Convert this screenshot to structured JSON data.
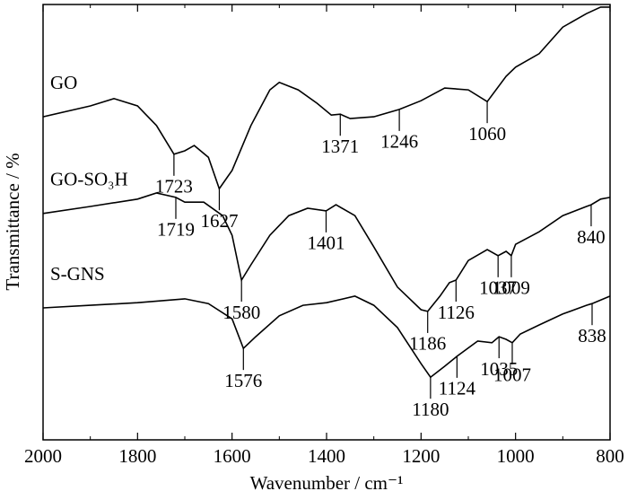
{
  "chart_data": {
    "type": "line",
    "xlabel": "Wavenumber / cm⁻¹",
    "ylabel": "Transmittance / %",
    "xlim": [
      2000,
      800
    ],
    "xticks": [
      2000,
      1800,
      1600,
      1400,
      1200,
      1000,
      800
    ],
    "ylim": [
      0,
      100
    ],
    "color": "#000000",
    "series": [
      {
        "name": "GO",
        "x": [
          2000,
          1900,
          1850,
          1800,
          1760,
          1723,
          1700,
          1680,
          1650,
          1627,
          1600,
          1560,
          1520,
          1500,
          1460,
          1420,
          1390,
          1371,
          1350,
          1300,
          1246,
          1200,
          1150,
          1100,
          1060,
          1020,
          1000,
          950,
          900,
          850,
          820,
          800
        ],
        "values": [
          74.2,
          76.7,
          78.4,
          76.7,
          72.2,
          65.6,
          66.4,
          67.6,
          64.9,
          57.7,
          61.9,
          72.2,
          80.4,
          82.1,
          80.4,
          77.3,
          74.6,
          74.8,
          73.8,
          74.2,
          75.9,
          77.9,
          80.8,
          80.4,
          77.7,
          83.5,
          85.6,
          88.7,
          94.8,
          97.9,
          99.4,
          99.4
        ],
        "peaks": [
          1723,
          1627,
          1371,
          1246,
          1060
        ]
      },
      {
        "name": "GO-SO₃H",
        "x": [
          2000,
          1900,
          1800,
          1760,
          1719,
          1700,
          1660,
          1620,
          1600,
          1580,
          1560,
          1520,
          1480,
          1440,
          1401,
          1380,
          1340,
          1300,
          1250,
          1200,
          1186,
          1160,
          1140,
          1126,
          1100,
          1060,
          1037,
          1020,
          1009,
          1000,
          950,
          900,
          850,
          840,
          820,
          800
        ],
        "values": [
          52.0,
          53.6,
          55.3,
          56.7,
          55.7,
          54.6,
          54.6,
          51.5,
          47.0,
          36.7,
          40.2,
          47.0,
          51.5,
          53.2,
          52.6,
          54.0,
          51.5,
          44.3,
          35.1,
          29.9,
          29.5,
          33.0,
          36.1,
          36.7,
          41.2,
          43.7,
          42.3,
          43.3,
          42.3,
          44.9,
          47.8,
          51.5,
          53.6,
          54.0,
          55.3,
          55.7
        ],
        "peaks": [
          1719,
          1580,
          1401,
          1186,
          1126,
          1037,
          1009,
          840
        ]
      },
      {
        "name": "S-GNS",
        "x": [
          2000,
          1900,
          1800,
          1700,
          1650,
          1600,
          1576,
          1550,
          1500,
          1450,
          1400,
          1340,
          1300,
          1250,
          1200,
          1180,
          1150,
          1124,
          1080,
          1050,
          1035,
          1020,
          1007,
          990,
          950,
          900,
          850,
          838,
          800
        ],
        "values": [
          30.3,
          30.9,
          31.5,
          32.4,
          31.3,
          27.8,
          21.0,
          23.7,
          28.5,
          30.9,
          31.5,
          33.0,
          30.9,
          25.8,
          17.5,
          14.4,
          16.9,
          19.2,
          22.7,
          22.3,
          23.7,
          23.1,
          22.3,
          24.3,
          26.4,
          28.9,
          30.9,
          31.3,
          33.0
        ],
        "peaks": [
          1576,
          1180,
          1124,
          1035,
          1007,
          838
        ]
      }
    ]
  }
}
